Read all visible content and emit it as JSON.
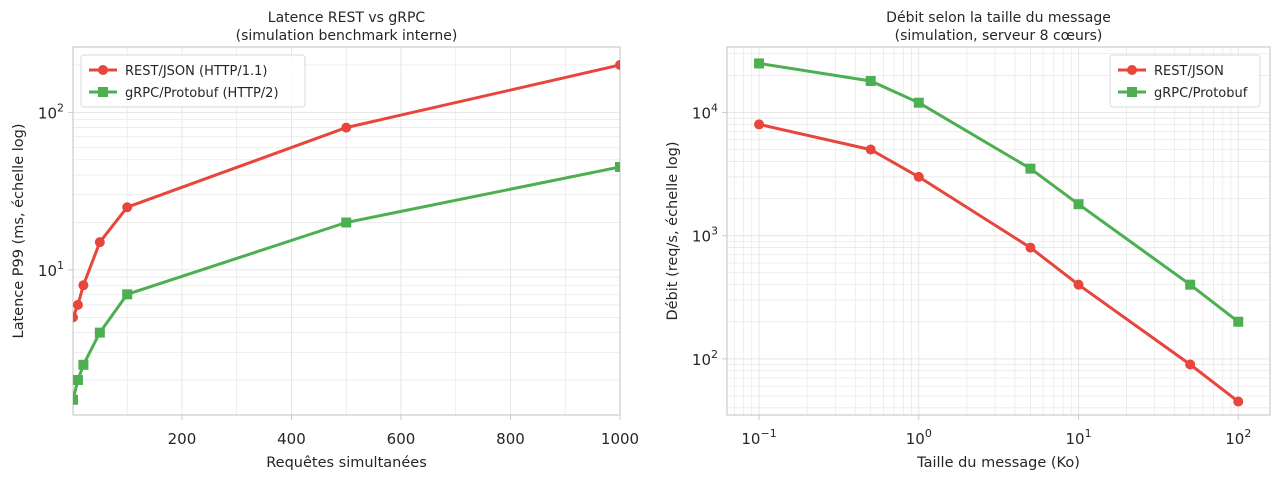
{
  "chart_data": [
    {
      "type": "line",
      "title": "Latence REST vs gRPC",
      "subtitle": "(simulation benchmark interne)",
      "xlabel": "Requêtes simultanées",
      "ylabel": "Latence P99 (ms, échelle log)",
      "xscale": "linear",
      "yscale": "log",
      "xlim": [
        1,
        1000
      ],
      "ylim": [
        1.2,
        260
      ],
      "xticks": [
        200,
        400,
        600,
        800,
        1000
      ],
      "xtick_labels": [
        "200",
        "400",
        "600",
        "800",
        "1000"
      ],
      "yticks": [
        10,
        100
      ],
      "ytick_labels": [
        "10^1",
        "10^2"
      ],
      "grid": true,
      "legend_position": "top-left",
      "series": [
        {
          "name": "REST/JSON (HTTP/1.1)",
          "color": "#e8453c",
          "marker": "circle",
          "x": [
            1,
            10,
            20,
            50,
            100,
            500,
            1000
          ],
          "y": [
            5,
            6,
            8,
            15,
            25,
            80,
            200
          ]
        },
        {
          "name": "gRPC/Protobuf (HTTP/2)",
          "color": "#4caf50",
          "marker": "square",
          "x": [
            1,
            10,
            20,
            50,
            100,
            500,
            1000
          ],
          "y": [
            1.5,
            2,
            2.5,
            4,
            7,
            20,
            45
          ]
        }
      ]
    },
    {
      "type": "line",
      "title": "Débit selon la taille du message",
      "subtitle": "(simulation, serveur 8 cœurs)",
      "xlabel": "Taille du message (Ko)",
      "ylabel": "Débit (req/s, échelle log)",
      "xscale": "log",
      "yscale": "log",
      "xlim": [
        0.063,
        158
      ],
      "ylim": [
        35,
        34000
      ],
      "xticks": [
        0.1,
        1,
        10,
        100
      ],
      "xtick_labels": [
        "10^-1",
        "10^0",
        "10^1",
        "10^2"
      ],
      "yticks": [
        100,
        1000,
        10000
      ],
      "ytick_labels": [
        "10^2",
        "10^3",
        "10^4"
      ],
      "grid": true,
      "legend_position": "top-right",
      "series": [
        {
          "name": "REST/JSON",
          "color": "#e8453c",
          "marker": "circle",
          "x": [
            0.1,
            0.5,
            1,
            5,
            10,
            50,
            100
          ],
          "y": [
            8000,
            5000,
            3000,
            800,
            400,
            90,
            45
          ]
        },
        {
          "name": "gRPC/Protobuf",
          "color": "#4caf50",
          "marker": "square",
          "x": [
            0.1,
            0.5,
            1,
            5,
            10,
            50,
            100
          ],
          "y": [
            25000,
            18000,
            12000,
            3500,
            1800,
            400,
            200
          ]
        }
      ]
    }
  ]
}
